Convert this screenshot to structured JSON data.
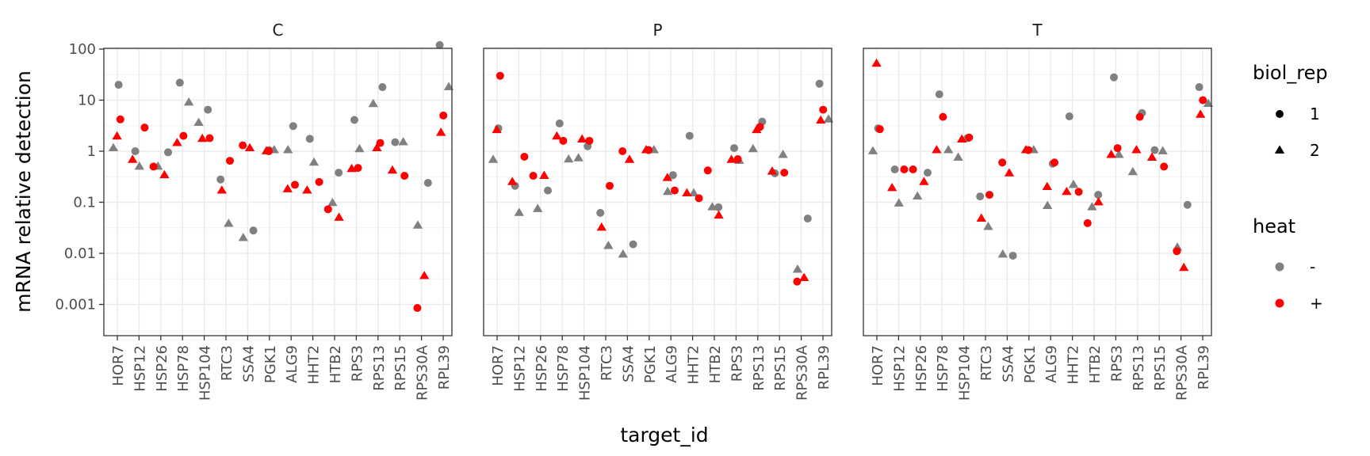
{
  "chart_data": {
    "type": "scatter",
    "facets": [
      "C",
      "P",
      "T"
    ],
    "categories": [
      "HOR7",
      "HSP12",
      "HSP26",
      "HSP78",
      "HSP104",
      "RTC3",
      "SSA4",
      "PGK1",
      "ALG9",
      "HHT2",
      "HTB2",
      "RPS3",
      "RPS13",
      "RPS15",
      "RPS30A",
      "RPL39"
    ],
    "xlabel": "target_id",
    "ylabel": "mRNA relative detection",
    "yscale": "log10",
    "ylim": [
      0.0006,
      160
    ],
    "yticks": [
      0.001,
      0.01,
      0.1,
      1,
      10,
      100
    ],
    "ytick_labels": [
      "0.001",
      "0.01",
      "0.1",
      "1",
      "10",
      "100"
    ],
    "grid": true,
    "legend_position": "right",
    "legends": {
      "shape": {
        "title": "biol_rep",
        "entries": [
          {
            "label": "1",
            "shape": "circle"
          },
          {
            "label": "2",
            "shape": "triangle"
          }
        ]
      },
      "color": {
        "title": "heat",
        "entries": [
          {
            "label": "-",
            "color": "#808080"
          },
          {
            "label": "+",
            "color": "#ff0000"
          }
        ]
      }
    },
    "colors": {
      "heat_minus": "#808080",
      "heat_plus": "#ff0000"
    },
    "points": {
      "C": {
        "minus_rep1": [
          20,
          1.0,
          0.95,
          22,
          6.5,
          0.28,
          0.028,
          1.05,
          3.1,
          1.75,
          0.38,
          4.1,
          18,
          1.5,
          0.24,
          120
        ],
        "minus_rep2": [
          1.15,
          0.5,
          0.5,
          9,
          3.6,
          0.038,
          0.02,
          1.05,
          1.05,
          0.6,
          0.097,
          1.1,
          8.4,
          1.5,
          0.035,
          18
        ],
        "plus_rep1": [
          4.2,
          2.9,
          0.5,
          2.0,
          1.8,
          0.65,
          1.3,
          1.0,
          0.22,
          0.25,
          0.073,
          0.47,
          1.45,
          0.33,
          0.00085,
          5.0
        ],
        "plus_rep2": [
          1.95,
          0.68,
          0.34,
          1.45,
          1.75,
          0.17,
          1.15,
          1.0,
          0.18,
          0.17,
          0.05,
          0.45,
          1.15,
          0.42,
          0.0036,
          2.3
        ]
      },
      "P": {
        "minus_rep1": [
          2.8,
          0.21,
          0.17,
          3.5,
          1.25,
          0.062,
          0.015,
          1.05,
          0.34,
          2.0,
          0.08,
          1.15,
          3.8,
          0.37,
          0.048,
          21
        ],
        "minus_rep2": [
          0.68,
          0.062,
          0.074,
          0.69,
          0.73,
          0.014,
          0.0095,
          1.05,
          0.16,
          0.15,
          0.08,
          0.65,
          1.1,
          0.85,
          0.0048,
          4.2
        ],
        "plus_rep1": [
          30,
          0.78,
          0.33,
          1.6,
          1.6,
          0.21,
          1.0,
          1.05,
          0.17,
          0.12,
          0.42,
          0.7,
          3.0,
          0.38,
          0.0028,
          6.5
        ],
        "plus_rep2": [
          2.6,
          0.25,
          0.33,
          1.95,
          1.7,
          0.032,
          0.68,
          1.05,
          0.3,
          0.15,
          0.055,
          0.68,
          2.6,
          0.4,
          0.0033,
          4.0
        ]
      },
      "T": {
        "minus_rep1": [
          2.8,
          0.44,
          0.38,
          13,
          1.8,
          0.13,
          0.009,
          1.05,
          0.57,
          4.8,
          0.14,
          28,
          5.6,
          1.05,
          0.089,
          18
        ],
        "minus_rep2": [
          1.0,
          0.095,
          0.13,
          1.05,
          0.75,
          0.033,
          0.0095,
          1.05,
          0.085,
          0.22,
          0.08,
          0.85,
          0.39,
          1.0,
          0.013,
          8.5
        ],
        "plus_rep1": [
          2.7,
          0.44,
          0.44,
          4.7,
          1.85,
          0.14,
          0.6,
          1.05,
          0.6,
          0.16,
          0.039,
          1.15,
          4.7,
          0.5,
          0.011,
          10
        ],
        "plus_rep2": [
          52,
          0.19,
          0.25,
          1.05,
          1.7,
          0.048,
          0.37,
          1.05,
          0.2,
          0.16,
          0.1,
          0.85,
          1.05,
          0.75,
          0.0052,
          5.2
        ]
      }
    }
  }
}
